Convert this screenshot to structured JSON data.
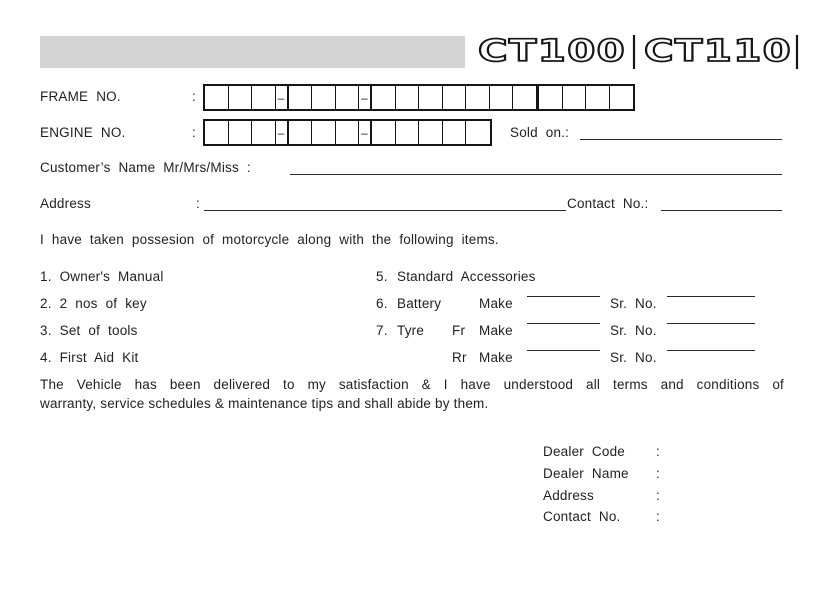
{
  "colors": {
    "ink": "#1f1f1f",
    "gray_bar": "#d4d4d4"
  },
  "header": {
    "models": [
      "CT100",
      "CT110"
    ]
  },
  "fields": {
    "dash_char": "–",
    "frame": {
      "label": "FRAME NO.",
      "colon": ":",
      "pattern": [
        3,
        "-",
        3,
        "-",
        7,
        "|",
        4
      ]
    },
    "engine": {
      "label": "ENGINE NO.",
      "colon": ":",
      "pattern": [
        3,
        "-",
        3,
        "-",
        5
      ]
    },
    "sold_on": {
      "label": "Sold on.:"
    },
    "customer": {
      "label": "Customer’s Name Mr/Mrs/Miss :"
    },
    "address": {
      "label": "Address",
      "colon": ":"
    },
    "contact": {
      "label": "Contact No.:"
    }
  },
  "possession_line": "I have taken possesion of motorcycle along with the following items.",
  "items": {
    "left": [
      "1. Owner's Manual",
      "2. 2 nos of key",
      "3. Set of tools",
      "4. First Aid Kit"
    ],
    "right": [
      {
        "num": "5.",
        "name": "Standard Accessories"
      },
      {
        "num": "6.",
        "name": "Battery",
        "make_label": "Make",
        "srno_label": "Sr. No."
      },
      {
        "num": "7.",
        "name": "Tyre",
        "pos": "Fr",
        "make_label": "Make",
        "srno_label": "Sr. No."
      },
      {
        "pos": "Rr",
        "make_label": "Make",
        "srno_label": "Sr. No."
      }
    ]
  },
  "declaration": {
    "line1": "The Vehicle has been delivered to my satisfaction & I have understood all terms and conditions of",
    "line2": "warranty, service schedules & maintenance tips and shall abide by them."
  },
  "dealer": {
    "rows": [
      {
        "label": "Dealer Code",
        "colon": ":"
      },
      {
        "label": "Dealer Name",
        "colon": ":"
      },
      {
        "label": "Address",
        "colon": ":"
      },
      {
        "label": "Contact No.",
        "colon": ":"
      }
    ]
  }
}
